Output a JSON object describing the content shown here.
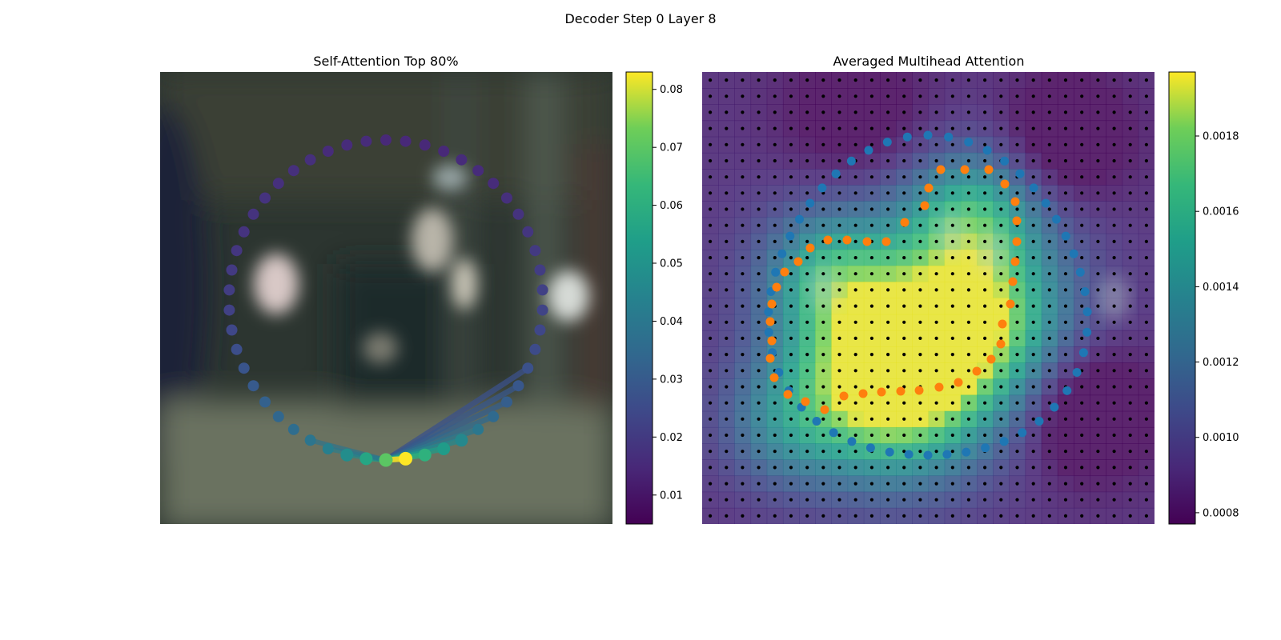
{
  "figure": {
    "suptitle": "Decoder Step 0 Layer 8"
  },
  "chart_data": [
    {
      "type": "scatter",
      "title": "Self-Attention Top 80%",
      "background": "blurred photo of an indoor scene (dark, greenish-grey tones)",
      "colormap": "viridis",
      "colorbar": {
        "range": [
          0.005,
          0.083
        ],
        "ticks": [
          "0.01",
          "0.02",
          "0.03",
          "0.04",
          "0.05",
          "0.06",
          "0.07",
          "0.08"
        ]
      },
      "ring_points": {
        "count": 50,
        "attention_values": [
          0.07,
          0.057,
          0.048,
          0.043,
          0.039,
          0.036,
          0.034,
          0.032,
          0.03,
          0.028,
          0.026,
          0.024,
          0.022,
          0.021,
          0.02,
          0.019,
          0.018,
          0.018,
          0.018,
          0.017,
          0.017,
          0.017,
          0.016,
          0.016,
          0.016,
          0.015,
          0.015,
          0.015,
          0.015,
          0.016,
          0.016,
          0.016,
          0.017,
          0.018,
          0.019,
          0.02,
          0.021,
          0.022,
          0.023,
          0.024,
          0.025,
          0.027,
          0.029,
          0.031,
          0.035,
          0.04,
          0.046,
          0.053,
          0.061,
          0.083
        ]
      },
      "highlight_link": {
        "from_index": 49,
        "to_index": 0,
        "value": 0.083,
        "color": "#e6d52a"
      }
    },
    {
      "type": "heatmap",
      "title": "Averaged Multihead Attention",
      "colormap": "viridis",
      "colorbar": {
        "range": [
          0.00077,
          0.00197
        ],
        "ticks": [
          "0.0008",
          "0.0010",
          "0.0012",
          "0.0014",
          "0.0016",
          "0.0018"
        ]
      },
      "grid_points": {
        "rows": 28,
        "cols": 28,
        "color": "#000000"
      },
      "series": [
        {
          "color": "#1f77b4",
          "count": 50,
          "shape": "large ring"
        },
        {
          "color": "#ff7f0e",
          "count": 40,
          "shape": "inner heart-like contour"
        }
      ]
    }
  ]
}
